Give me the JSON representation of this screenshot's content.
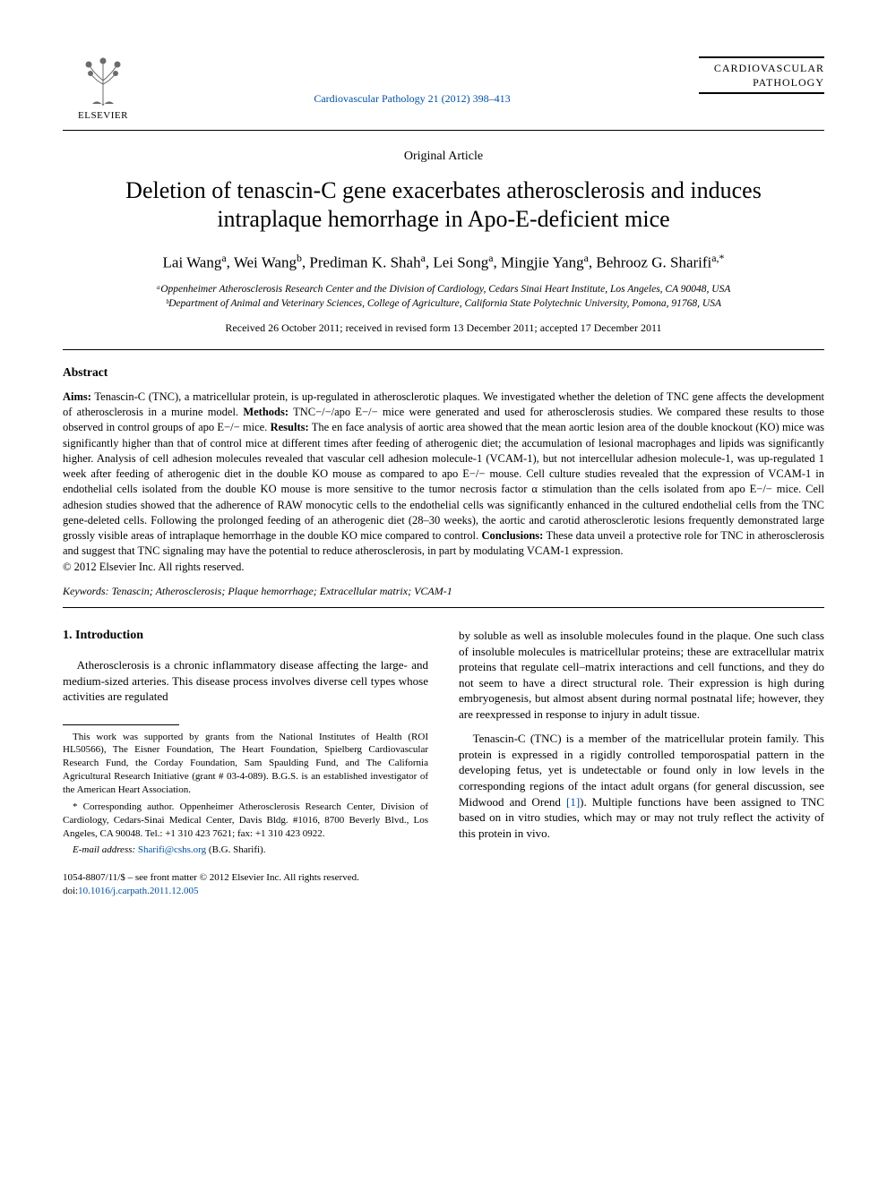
{
  "header": {
    "publisher": "ELSEVIER",
    "journal_ref": "Cardiovascular Pathology 21 (2012) 398–413",
    "journal_logo_line1": "CARDIOVASCULAR",
    "journal_logo_line2": "PATHOLOGY"
  },
  "article": {
    "type": "Original Article",
    "title": "Deletion of tenascin-C gene exacerbates atherosclerosis and induces intraplaque hemorrhage in Apo-E-deficient mice",
    "authors_html": "Lai Wang<sup>a</sup>, Wei Wang<sup>b</sup>, Prediman K. Shah<sup>a</sup>, Lei Song<sup>a</sup>, Mingjie Yang<sup>a</sup>, Behrooz G. Sharifi<sup>a,*</sup>",
    "affiliation_a": "ᵃOppenheimer Atherosclerosis Research Center and the Division of Cardiology, Cedars Sinai Heart Institute, Los Angeles, CA 90048, USA",
    "affiliation_b": "ᵇDepartment of Animal and Veterinary Sciences, College of Agriculture, California State Polytechnic University, Pomona, 91768, USA",
    "dates": "Received 26 October 2011; received in revised form 13 December 2011; accepted 17 December 2011"
  },
  "abstract": {
    "heading": "Abstract",
    "aims_label": "Aims:",
    "aims": " Tenascin-C (TNC), a matricellular protein, is up-regulated in atherosclerotic plaques. We investigated whether the deletion of TNC gene affects the development of atherosclerosis in a murine model. ",
    "methods_label": "Methods:",
    "methods": " TNC−/−/apo E−/− mice were generated and used for atherosclerosis studies. We compared these results to those observed in control groups of apo E−/− mice. ",
    "results_label": "Results:",
    "results": " The en face analysis of aortic area showed that the mean aortic lesion area of the double knockout (KO) mice was significantly higher than that of control mice at different times after feeding of atherogenic diet; the accumulation of lesional macrophages and lipids was significantly higher. Analysis of cell adhesion molecules revealed that vascular cell adhesion molecule-1 (VCAM-1), but not intercellular adhesion molecule-1, was up-regulated 1 week after feeding of atherogenic diet in the double KO mouse as compared to apo E−/− mouse. Cell culture studies revealed that the expression of VCAM-1 in endothelial cells isolated from the double KO mouse is more sensitive to the tumor necrosis factor α stimulation than the cells isolated from apo E−/− mice. Cell adhesion studies showed that the adherence of RAW monocytic cells to the endothelial cells was significantly enhanced in the cultured endothelial cells from the TNC gene-deleted cells. Following the prolonged feeding of an atherogenic diet (28–30 weeks), the aortic and carotid atherosclerotic lesions frequently demonstrated large grossly visible areas of intraplaque hemorrhage in the double KO mice compared to control. ",
    "conclusions_label": "Conclusions:",
    "conclusions": " These data unveil a protective role for TNC in atherosclerosis and suggest that TNC signaling may have the potential to reduce atherosclerosis, in part by modulating VCAM-1 expression.",
    "copyright": "© 2012 Elsevier Inc. All rights reserved.",
    "keywords_label": "Keywords:",
    "keywords": " Tenascin; Atherosclerosis; Plaque hemorrhage; Extracellular matrix; VCAM-1"
  },
  "intro": {
    "heading": "1. Introduction",
    "p1": "Atherosclerosis is a chronic inflammatory disease affecting the large- and medium-sized arteries. This disease process involves diverse cell types whose activities are regulated",
    "p2": "by soluble as well as insoluble molecules found in the plaque. One such class of insoluble molecules is matricellular proteins; these are extracellular matrix proteins that regulate cell–matrix interactions and cell functions, and they do not seem to have a direct structural role. Their expression is high during embryogenesis, but almost absent during normal postnatal life; however, they are reexpressed in response to injury in adult tissue.",
    "p3a": "Tenascin-C (TNC) is a member of the matricellular protein family. This protein is expressed in a rigidly controlled temporospatial pattern in the developing fetus, yet is undetectable or found only in low levels in the corresponding regions of the intact adult organs (for general discussion, see Midwood and Orend ",
    "ref1": "[1]",
    "p3b": "). Multiple functions have been assigned to TNC based on in vitro studies, which may or may not truly reflect the activity of this protein in vivo."
  },
  "footnotes": {
    "funding": "This work was supported by grants from the National Institutes of Health (ROI HL50566), The Eisner Foundation, The Heart Foundation, Spielberg Cardiovascular Research Fund, the Corday Foundation, Sam Spaulding Fund, and The California Agricultural Research Initiative (grant # 03-4-089). B.G.S. is an established investigator of the American Heart Association.",
    "corresponding": "* Corresponding author. Oppenheimer Atherosclerosis Research Center, Division of Cardiology, Cedars-Sinai Medical Center, Davis Bldg. #1016, 8700 Beverly Blvd., Los Angeles, CA 90048. Tel.: +1 310 423 7621; fax: +1 310 423 0922.",
    "email_label": "E-mail address:",
    "email": " Sharifi@cshs.org",
    "email_attrib": " (B.G. Sharifi)."
  },
  "footer": {
    "line1": "1054-8807/11/$ – see front matter © 2012 Elsevier Inc. All rights reserved.",
    "doi_label": "doi:",
    "doi": "10.1016/j.carpath.2011.12.005"
  },
  "colors": {
    "link": "#0050a0",
    "text": "#000000",
    "background": "#ffffff",
    "rule": "#000000"
  },
  "typography": {
    "body_family": "Times New Roman",
    "title_size_pt": 20,
    "authors_size_pt": 13,
    "body_size_pt": 10,
    "abstract_size_pt": 9.5
  }
}
